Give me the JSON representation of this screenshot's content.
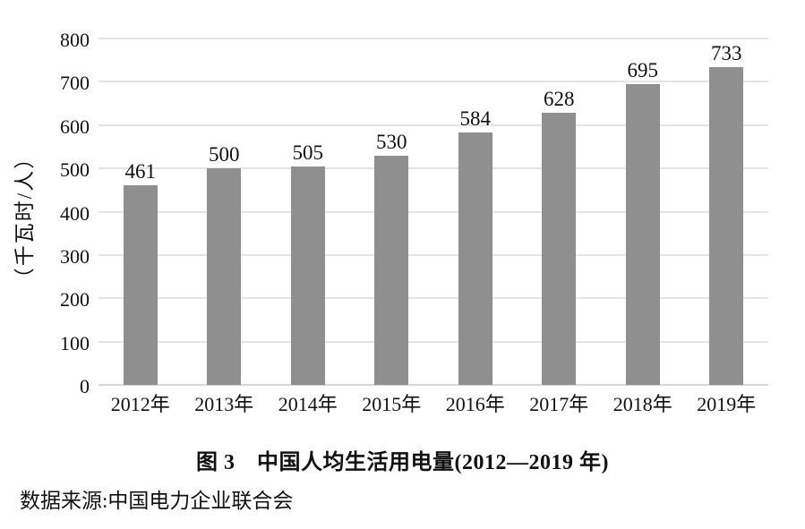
{
  "chart_data": {
    "type": "bar",
    "title": "图 3　中国人均生活用电量(2012—2019 年)",
    "source": "数据来源:中国电力企业联合会",
    "ylabel": "（千瓦时/人）",
    "categories": [
      "2012年",
      "2013年",
      "2014年",
      "2015年",
      "2016年",
      "2017年",
      "2018年",
      "2019年"
    ],
    "values": [
      461,
      500,
      505,
      530,
      584,
      628,
      695,
      733
    ],
    "ylim": [
      0,
      800
    ],
    "yticks": [
      0,
      100,
      200,
      300,
      400,
      500,
      600,
      700,
      800
    ],
    "grid": true,
    "legend": "none",
    "bar_color": "#8f8f8f",
    "grid_color": "#e4e4e4",
    "baseline_color": "#d8d8d8",
    "text_color": "#111111"
  }
}
